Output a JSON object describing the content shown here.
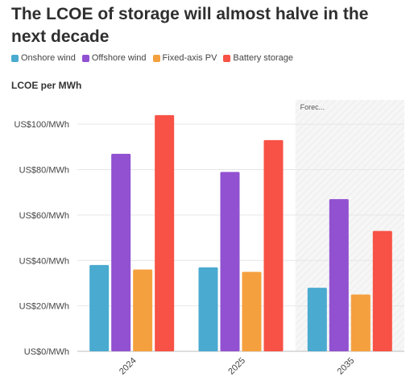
{
  "title": "The LCOE of storage will almost halve in the next decade",
  "legend": {
    "items": [
      {
        "label": "Onshore wind",
        "color": "#4AAACF"
      },
      {
        "label": "Offshore wind",
        "color": "#9151D1"
      },
      {
        "label": "Fixed-axis PV",
        "color": "#F5A03E"
      },
      {
        "label": "Battery storage",
        "color": "#F75245"
      }
    ]
  },
  "chart_data": {
    "type": "bar",
    "title": "The LCOE of storage will almost halve in the next decade",
    "ylabel": "LCOE per MWh",
    "xlabel": "",
    "categories": [
      "2024",
      "2025",
      "2035"
    ],
    "series": [
      {
        "name": "Onshore wind",
        "values": [
          38,
          37,
          28
        ],
        "color": "#4AAACF"
      },
      {
        "name": "Offshore wind",
        "values": [
          87,
          79,
          67
        ],
        "color": "#9151D1"
      },
      {
        "name": "Fixed-axis PV",
        "values": [
          36,
          35,
          25
        ],
        "color": "#F5A03E"
      },
      {
        "name": "Battery storage",
        "values": [
          104,
          93,
          53
        ],
        "color": "#F75245"
      }
    ],
    "ylim": [
      0,
      110
    ],
    "yticks": [
      0,
      20,
      40,
      60,
      80,
      100
    ],
    "ytick_labels": [
      "US$0/MWh",
      "US$20/MWh",
      "US$40/MWh",
      "US$60/MWh",
      "US$80/MWh",
      "US$100/MWh"
    ],
    "grid": true,
    "legend_position": "top-left",
    "forecast_region": {
      "start_category": "2035",
      "label": "Forec..."
    }
  }
}
